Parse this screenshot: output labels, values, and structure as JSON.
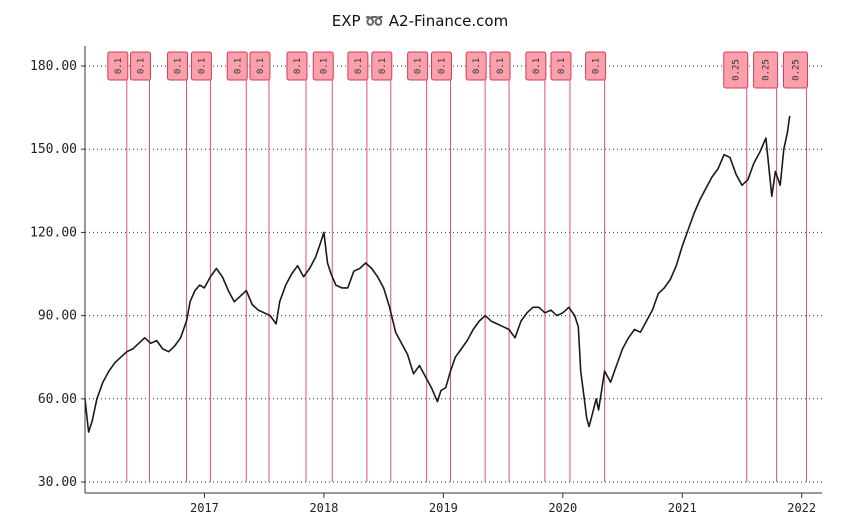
{
  "chart_data": {
    "type": "line",
    "title": "EXP ➿ A2-Finance.com",
    "ylim": [
      30,
      180
    ],
    "xlim": [
      2016.0,
      2022.17
    ],
    "y_ticks": [
      {
        "value": 30,
        "label": "30.00"
      },
      {
        "value": 60,
        "label": "60.00"
      },
      {
        "value": 90,
        "label": "90.00"
      },
      {
        "value": 120,
        "label": "120.00"
      },
      {
        "value": 150,
        "label": "150.00"
      },
      {
        "value": 180,
        "label": "180.00"
      }
    ],
    "x_ticks": [
      {
        "value": 2017,
        "label": "2017"
      },
      {
        "value": 2018,
        "label": "2018"
      },
      {
        "value": 2019,
        "label": "2019"
      },
      {
        "value": 2020,
        "label": "2020"
      },
      {
        "value": 2021,
        "label": "2021"
      },
      {
        "value": 2022,
        "label": "2022"
      }
    ],
    "grid": "horizontal-dotted",
    "dividends": [
      {
        "date": 2016.35,
        "amount": "0.1"
      },
      {
        "date": 2016.54,
        "amount": "0.1"
      },
      {
        "date": 2016.85,
        "amount": "0.1"
      },
      {
        "date": 2017.05,
        "amount": "0.1"
      },
      {
        "date": 2017.35,
        "amount": "0.1"
      },
      {
        "date": 2017.54,
        "amount": "0.1"
      },
      {
        "date": 2017.85,
        "amount": "0.1"
      },
      {
        "date": 2018.07,
        "amount": "0.1"
      },
      {
        "date": 2018.36,
        "amount": "0.1"
      },
      {
        "date": 2018.56,
        "amount": "0.1"
      },
      {
        "date": 2018.86,
        "amount": "0.1"
      },
      {
        "date": 2019.06,
        "amount": "0.1"
      },
      {
        "date": 2019.35,
        "amount": "0.1"
      },
      {
        "date": 2019.55,
        "amount": "0.1"
      },
      {
        "date": 2019.85,
        "amount": "0.1"
      },
      {
        "date": 2020.06,
        "amount": "0.1"
      },
      {
        "date": 2020.35,
        "amount": "0.1"
      },
      {
        "date": 2021.54,
        "amount": "0.25"
      },
      {
        "date": 2021.79,
        "amount": "0.25"
      },
      {
        "date": 2022.04,
        "amount": "0.25"
      }
    ],
    "series": [
      {
        "x": [
          2016.0,
          2016.03,
          2016.06,
          2016.1,
          2016.15,
          2016.2,
          2016.25,
          2016.3,
          2016.35,
          2016.4,
          2016.45,
          2016.5,
          2016.55,
          2016.6,
          2016.65,
          2016.7,
          2016.75,
          2016.8,
          2016.85,
          2016.88,
          2016.92,
          2016.96,
          2017.0,
          2017.05,
          2017.1,
          2017.15,
          2017.2,
          2017.25,
          2017.3,
          2017.35,
          2017.4,
          2017.45,
          2017.5,
          2017.55,
          2017.6,
          2017.63,
          2017.68,
          2017.73,
          2017.78,
          2017.83,
          2017.88,
          2017.93,
          2017.97,
          2018.0,
          2018.03,
          2018.06,
          2018.1,
          2018.15,
          2018.2,
          2018.25,
          2018.3,
          2018.35,
          2018.4,
          2018.45,
          2018.5,
          2018.55,
          2018.6,
          2018.65,
          2018.7,
          2018.75,
          2018.8,
          2018.85,
          2018.9,
          2018.95,
          2018.98,
          2019.02,
          2019.06,
          2019.1,
          2019.15,
          2019.2,
          2019.25,
          2019.3,
          2019.35,
          2019.4,
          2019.45,
          2019.5,
          2019.55,
          2019.6,
          2019.65,
          2019.7,
          2019.75,
          2019.8,
          2019.85,
          2019.9,
          2019.95,
          2020.0,
          2020.05,
          2020.1,
          2020.13,
          2020.15,
          2020.18,
          2020.2,
          2020.22,
          2020.25,
          2020.28,
          2020.3,
          2020.35,
          2020.4,
          2020.45,
          2020.5,
          2020.55,
          2020.6,
          2020.65,
          2020.7,
          2020.75,
          2020.8,
          2020.85,
          2020.9,
          2020.95,
          2021.0,
          2021.05,
          2021.1,
          2021.15,
          2021.2,
          2021.25,
          2021.3,
          2021.35,
          2021.4,
          2021.45,
          2021.5,
          2021.55,
          2021.6,
          2021.65,
          2021.7,
          2021.75,
          2021.78,
          2021.82,
          2021.85,
          2021.88,
          2021.9
        ],
        "values": [
          60,
          48,
          52,
          60,
          66,
          70,
          73,
          75,
          77,
          78,
          80,
          82,
          80,
          81,
          78,
          77,
          79,
          82,
          88,
          95,
          99,
          101,
          100,
          104,
          107,
          104,
          99,
          95,
          97,
          99,
          94,
          92,
          91,
          90,
          87,
          95,
          101,
          105,
          108,
          104,
          107,
          111,
          116,
          120,
          109,
          105,
          101,
          100,
          100,
          106,
          107,
          109,
          107,
          104,
          100,
          93,
          84,
          80,
          76,
          69,
          72,
          68,
          64,
          59,
          63,
          64,
          70,
          75,
          78,
          81,
          85,
          88,
          90,
          88,
          87,
          86,
          85,
          82,
          88,
          91,
          93,
          93,
          91,
          92,
          90,
          91,
          93,
          90,
          86,
          70,
          60,
          53,
          50,
          55,
          60,
          56,
          70,
          66,
          72,
          78,
          82,
          85,
          84,
          88,
          92,
          98,
          100,
          103,
          108,
          115,
          121,
          127,
          132,
          136,
          140,
          143,
          148,
          147,
          141,
          137,
          139,
          145,
          149,
          154,
          133,
          142,
          137,
          150,
          156,
          162
        ]
      }
    ]
  }
}
